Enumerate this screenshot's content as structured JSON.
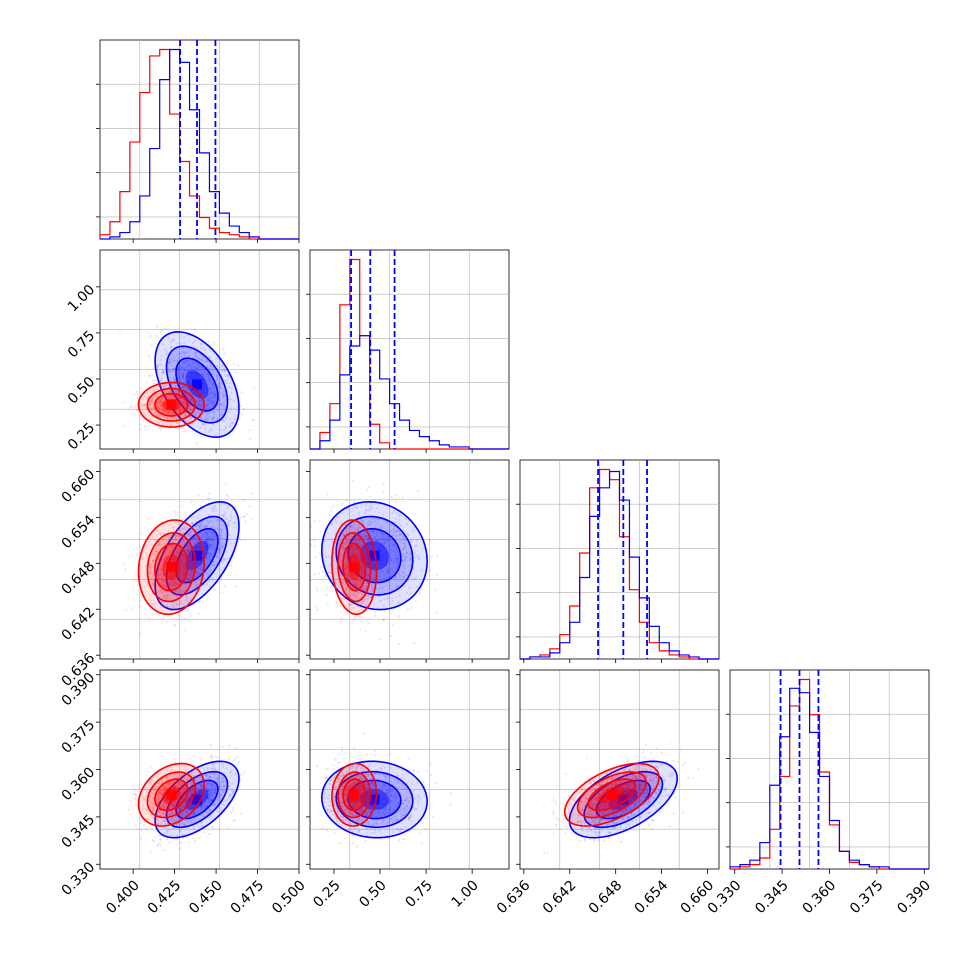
{
  "chart_data": {
    "type": "corner",
    "colors": {
      "red_series": "#ff0000",
      "blue_series": "#0000ff",
      "grid": "#b0b0b0"
    },
    "series": [
      {
        "color": "#ff0000",
        "mean": [
          0.423,
          0.36,
          0.6475,
          0.352
        ],
        "sd": [
          0.009,
          0.055,
          0.0028,
          0.0045
        ],
        "corr": [
          [
            1,
            0,
            0.1,
            0.3
          ],
          [
            0,
            1,
            -0.1,
            0.05
          ],
          [
            0.1,
            -0.1,
            1,
            0.55
          ],
          [
            0.3,
            0.05,
            0.55,
            1
          ]
        ]
      },
      {
        "color": "#0000ff",
        "mean": [
          0.4385,
          0.47,
          0.649,
          0.3505
        ],
        "sd": [
          0.0115,
          0.13,
          0.0032,
          0.0055
        ],
        "corr": [
          [
            1,
            -0.45,
            0.55,
            0.55
          ],
          [
            -0.45,
            1,
            -0.1,
            -0.05
          ],
          [
            0.55,
            -0.1,
            1,
            0.55
          ],
          [
            0.55,
            -0.05,
            0.55,
            1
          ]
        ]
      }
    ],
    "quantile_lines": [
      [
        0.4283,
        0.4385,
        0.4496
      ],
      [
        0.343,
        0.447,
        0.579
      ],
      [
        0.6457,
        0.649,
        0.6521
      ],
      [
        0.3445,
        0.3505,
        0.3565
      ]
    ],
    "ranges": [
      [
        0.38,
        0.5
      ],
      [
        0.12,
        1.2
      ],
      [
        0.6355,
        0.6615
      ],
      [
        0.3285,
        0.3915
      ]
    ],
    "ticks": [
      [
        "0.400",
        "0.425",
        "0.450",
        "0.475",
        "0.500"
      ],
      [
        "0.25",
        "0.50",
        "0.75",
        "1.00"
      ],
      [
        "0.636",
        "0.642",
        "0.648",
        "0.654",
        "0.660"
      ],
      [
        "0.330",
        "0.345",
        "0.360",
        "0.375",
        "0.390"
      ]
    ],
    "histogram": {
      "bins": 20,
      "red_0": [
        2,
        8,
        22,
        45,
        68,
        85,
        88,
        58,
        36,
        20,
        10,
        5,
        3,
        2,
        1,
        0,
        0,
        0,
        0,
        0
      ],
      "blue_0": [
        0,
        1,
        3,
        8,
        20,
        42,
        74,
        88,
        82,
        60,
        40,
        22,
        12,
        6,
        3,
        1,
        0,
        0,
        0,
        0
      ],
      "red_1": [
        0,
        8,
        22,
        70,
        92,
        55,
        12,
        3,
        0,
        0,
        0,
        0,
        0,
        0,
        0,
        0,
        0,
        0,
        0,
        0
      ],
      "blue_1": [
        0,
        4,
        14,
        36,
        50,
        55,
        48,
        34,
        22,
        14,
        9,
        6,
        4,
        2,
        1,
        1,
        0,
        0,
        0,
        0
      ],
      "red_2": [
        0,
        1,
        2,
        5,
        12,
        26,
        52,
        84,
        93,
        88,
        60,
        34,
        18,
        8,
        4,
        2,
        1,
        0,
        0,
        0
      ],
      "blue_2": [
        0,
        1,
        1,
        3,
        8,
        18,
        40,
        70,
        84,
        92,
        78,
        50,
        30,
        16,
        8,
        4,
        2,
        1,
        0,
        0
      ],
      "red_3": [
        0,
        1,
        2,
        5,
        18,
        42,
        74,
        86,
        70,
        44,
        20,
        8,
        3,
        2,
        1,
        0,
        0,
        0,
        0,
        0
      ],
      "blue_3": [
        1,
        2,
        4,
        12,
        38,
        60,
        82,
        80,
        62,
        42,
        22,
        8,
        4,
        2,
        1,
        1,
        0,
        0,
        0,
        0
      ]
    },
    "grid": true
  }
}
